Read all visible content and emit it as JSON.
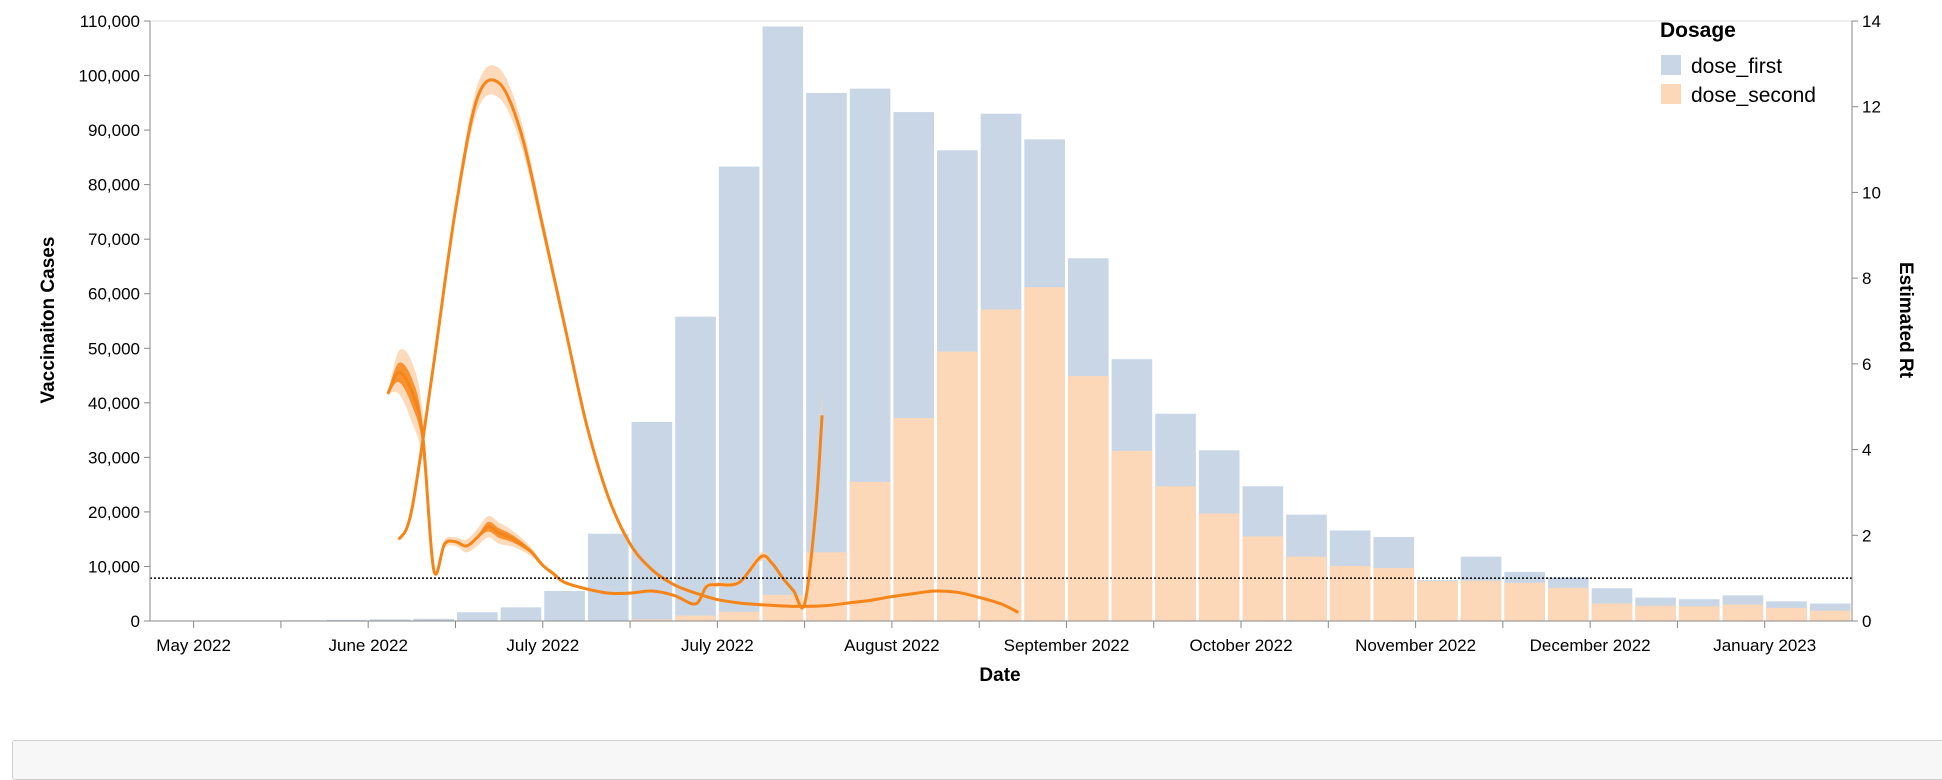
{
  "chart_data": {
    "type": "bar",
    "xlabel": "Date",
    "ylabel": "Vaccinaiton Cases",
    "y2label": "Estimated Rt",
    "ylim": [
      0,
      110000
    ],
    "y2lim": [
      0,
      14
    ],
    "y_ticks": [
      "0",
      "10,000",
      "20,000",
      "30,000",
      "40,000",
      "50,000",
      "60,000",
      "70,000",
      "80,000",
      "90,000",
      "100,000",
      "110,000"
    ],
    "y2_ticks": [
      "0",
      "2",
      "4",
      "6",
      "8",
      "10",
      "12",
      "14"
    ],
    "x_tick_labels": [
      "May 2022",
      "June 2022",
      "July 2022",
      "July 2022",
      "August 2022",
      "September 2022",
      "October 2022",
      "November 2022",
      "December 2022",
      "January 2023"
    ],
    "reference_line_rt": 1,
    "legend": {
      "title": "Dosage",
      "position": "top-right",
      "items": [
        {
          "name": "dose_first",
          "color": "#c8d6e6"
        },
        {
          "name": "dose_second",
          "color": "#fdd8b8"
        }
      ]
    },
    "bar_colors": {
      "dose_first": "#c8d6e6",
      "dose_second": "#fdd8b8"
    },
    "line_color": "#f58518",
    "band_color": "#fdd4b0",
    "dose_first": [
      0,
      50,
      80,
      120,
      200,
      300,
      400,
      1600,
      2500,
      5500,
      16000,
      36500,
      55800,
      83300,
      109000,
      96800,
      97600,
      93300,
      86300,
      93000,
      88300,
      66500,
      48000,
      38000,
      31300,
      24700,
      19500,
      16600,
      15400,
      7500,
      11800,
      9000,
      8000,
      6000,
      4300,
      4000,
      4700,
      3600,
      3200
    ],
    "dose_second": [
      0,
      0,
      0,
      0,
      0,
      0,
      0,
      0,
      0,
      0,
      0,
      300,
      1000,
      1700,
      4800,
      12600,
      25500,
      37200,
      49400,
      57100,
      61200,
      44900,
      31200,
      24700,
      19700,
      15500,
      11800,
      10100,
      9700,
      7300,
      7400,
      7000,
      6100,
      3200,
      2800,
      2700,
      3000,
      2400,
      1900
    ],
    "rt_series": [
      {
        "name": "",
        "points": [
          [
            5.45,
            5.3
          ],
          [
            5.7,
            5.8
          ],
          [
            6.0,
            5.35
          ],
          [
            6.25,
            4.3
          ],
          [
            6.5,
            1.2
          ],
          [
            6.75,
            1.8
          ],
          [
            7.0,
            1.85
          ],
          [
            7.25,
            1.75
          ],
          [
            7.5,
            1.95
          ],
          [
            7.75,
            2.2
          ],
          [
            8.0,
            2.05
          ],
          [
            8.25,
            1.95
          ],
          [
            8.5,
            1.8
          ],
          [
            8.75,
            1.6
          ],
          [
            9.0,
            1.3
          ],
          [
            9.25,
            1.1
          ],
          [
            9.5,
            0.9
          ],
          [
            10.0,
            0.75
          ],
          [
            10.5,
            0.65
          ],
          [
            11.0,
            0.65
          ],
          [
            11.5,
            0.7
          ],
          [
            12.0,
            0.6
          ],
          [
            12.5,
            0.4
          ],
          [
            12.75,
            0.8
          ],
          [
            13.0,
            0.85
          ],
          [
            13.5,
            0.9
          ],
          [
            14.0,
            1.5
          ],
          [
            14.25,
            1.35
          ],
          [
            14.5,
            1.0
          ],
          [
            14.75,
            0.7
          ],
          [
            15.0,
            0.4
          ],
          [
            15.25,
            2.5
          ],
          [
            15.4,
            4.8
          ]
        ],
        "band_half_width": [
          0,
          0.5,
          0.7,
          0.55,
          0.05,
          0.1,
          0.1,
          0.15,
          0.2,
          0.25,
          0.25,
          0.2,
          0.15,
          0.1,
          0.05,
          0.05,
          0.03,
          0.03,
          0.03,
          0.03,
          0.03,
          0.03,
          0.03,
          0.05,
          0.05,
          0.05,
          0.1,
          0.05,
          0.05,
          0.05,
          0.05,
          0.3,
          0.6
        ],
        "thick": [
          0,
          1,
          1,
          1,
          0,
          0,
          0,
          0,
          0,
          1,
          1,
          1,
          1,
          1,
          0,
          0,
          0,
          0,
          0,
          0,
          0,
          0,
          0,
          0,
          0,
          0,
          0,
          0,
          0,
          0,
          0,
          0,
          0
        ]
      },
      {
        "name": "",
        "points": [
          [
            5.7,
            1.9
          ],
          [
            6.0,
            2.6
          ],
          [
            6.5,
            6.0
          ],
          [
            7.0,
            9.6
          ],
          [
            7.5,
            12.2
          ],
          [
            8.0,
            12.55
          ],
          [
            8.5,
            11.4
          ],
          [
            9.0,
            9.2
          ],
          [
            9.5,
            6.9
          ],
          [
            10.0,
            4.6
          ],
          [
            10.5,
            2.9
          ],
          [
            11.0,
            1.8
          ],
          [
            11.5,
            1.2
          ],
          [
            12.0,
            0.85
          ],
          [
            12.5,
            0.65
          ],
          [
            13.0,
            0.5
          ],
          [
            13.5,
            0.42
          ],
          [
            14.0,
            0.38
          ],
          [
            14.5,
            0.35
          ],
          [
            15.0,
            0.34
          ],
          [
            15.5,
            0.36
          ],
          [
            16.0,
            0.42
          ],
          [
            16.5,
            0.48
          ],
          [
            17.0,
            0.57
          ],
          [
            17.5,
            0.64
          ],
          [
            18.0,
            0.7
          ],
          [
            18.5,
            0.67
          ],
          [
            19.0,
            0.55
          ],
          [
            19.5,
            0.4
          ],
          [
            19.9,
            0.2
          ]
        ],
        "band_half_width": [
          0.05,
          0.05,
          0.1,
          0.2,
          0.3,
          0.35,
          0.3,
          0.2,
          0.15,
          0.1,
          0.05,
          0.04,
          0.03,
          0.03,
          0.03,
          0.03,
          0.03,
          0.03,
          0.03,
          0.03,
          0.03,
          0.03,
          0.03,
          0.03,
          0.03,
          0.03,
          0.03,
          0.03,
          0.03,
          0.03
        ]
      }
    ]
  }
}
